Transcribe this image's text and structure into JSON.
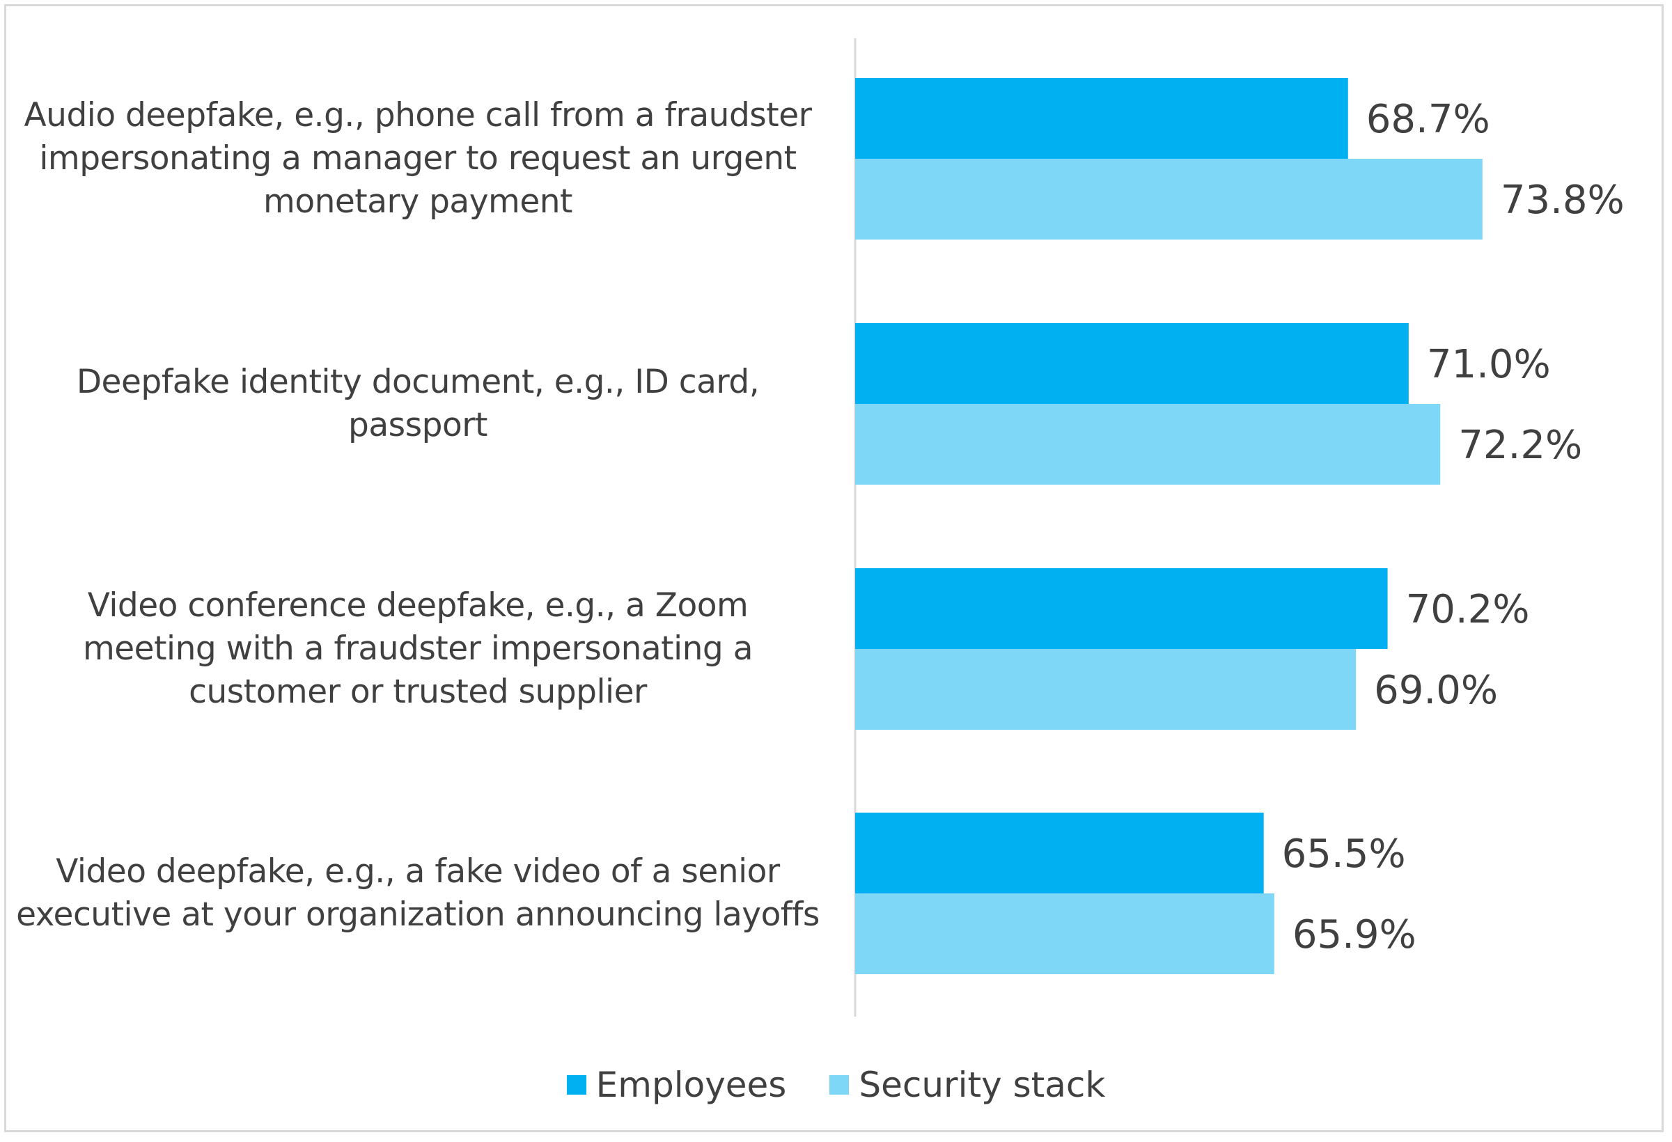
{
  "chart_data": {
    "type": "bar",
    "orientation": "horizontal",
    "categories": [
      "Audio deepfake, e.g., phone call from a fraudster impersonating a manager to request an urgent monetary payment",
      "Deepfake identity document, e.g., ID card, passport",
      "Video conference deepfake, e.g., a Zoom meeting with a fraudster impersonating a customer or trusted supplier",
      "Video deepfake, e.g., a fake video of a senior executive at your organization announcing layoffs"
    ],
    "category_lines": [
      [
        "Audio deepfake, e.g., phone call from a fraudster",
        "impersonating a manager to request an urgent",
        "monetary payment"
      ],
      [
        "Deepfake identity document, e.g., ID card,",
        "passport"
      ],
      [
        "Video conference deepfake, e.g., a Zoom",
        "meeting with a fraudster impersonating a",
        "customer or trusted supplier"
      ],
      [
        "Video deepfake, e.g., a fake video of a senior",
        "executive at your organization announcing layoffs"
      ]
    ],
    "series": [
      {
        "name": "Employees",
        "color": "#00b0f0",
        "values": [
          68.7,
          71.0,
          70.2,
          65.5
        ],
        "labels": [
          "68.7%",
          "71.0%",
          "70.2%",
          "65.5%"
        ]
      },
      {
        "name": "Security stack",
        "color": "#7fd7f7",
        "values": [
          73.8,
          72.2,
          69.0,
          65.9
        ],
        "labels": [
          "73.8%",
          "72.2%",
          "69.0%",
          "65.9%"
        ]
      }
    ],
    "xlim": [
      50,
      80
    ],
    "grid": false,
    "legend_position": "bottom"
  }
}
